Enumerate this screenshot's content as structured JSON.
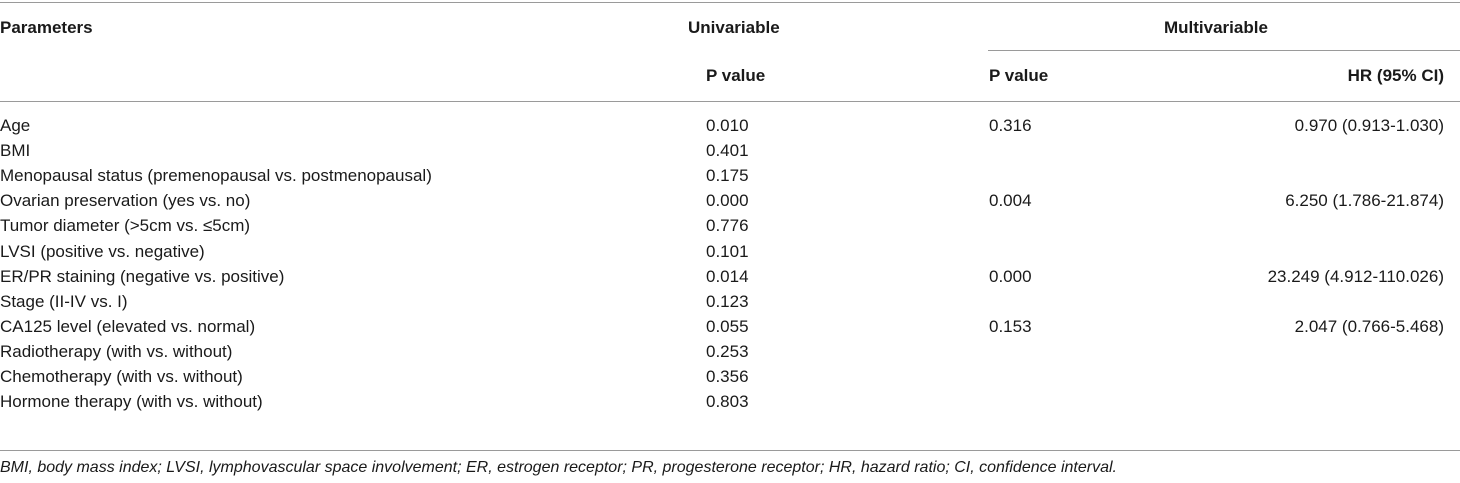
{
  "table": {
    "headers": {
      "parameters": "Parameters",
      "univariable": "Univariable",
      "multivariable": "Multivariable",
      "uni_p": "P value",
      "multi_p": "P value",
      "multi_hr": "HR (95% CI)"
    },
    "rows": [
      {
        "parameter": "Age",
        "uni_p": "0.010",
        "multi_p": "0.316",
        "hr": "0.970 (0.913-1.030)"
      },
      {
        "parameter": "BMI",
        "uni_p": "0.401",
        "multi_p": "",
        "hr": ""
      },
      {
        "parameter": "Menopausal status (premenopausal vs. postmenopausal)",
        "uni_p": "0.175",
        "multi_p": "",
        "hr": ""
      },
      {
        "parameter": "Ovarian preservation (yes vs. no)",
        "uni_p": "0.000",
        "multi_p": "0.004",
        "hr": "6.250 (1.786-21.874)"
      },
      {
        "parameter": "Tumor diameter (>5cm vs. ≤5cm)",
        "uni_p": "0.776",
        "multi_p": "",
        "hr": ""
      },
      {
        "parameter": "LVSI (positive vs. negative)",
        "uni_p": "0.101",
        "multi_p": "",
        "hr": ""
      },
      {
        "parameter": "ER/PR staining (negative vs. positive)",
        "uni_p": "0.014",
        "multi_p": "0.000",
        "hr": "23.249 (4.912-110.026)"
      },
      {
        "parameter": "Stage (II-IV vs. I)",
        "uni_p": "0.123",
        "multi_p": "",
        "hr": ""
      },
      {
        "parameter": "CA125 level (elevated vs. normal)",
        "uni_p": "0.055",
        "multi_p": "0.153",
        "hr": "2.047 (0.766-5.468)"
      },
      {
        "parameter": "Radiotherapy (with vs. without)",
        "uni_p": "0.253",
        "multi_p": "",
        "hr": ""
      },
      {
        "parameter": "Chemotherapy (with vs. without)",
        "uni_p": "0.356",
        "multi_p": "",
        "hr": ""
      },
      {
        "parameter": "Hormone therapy (with vs. without)",
        "uni_p": "0.803",
        "multi_p": "",
        "hr": ""
      }
    ],
    "footnote": "BMI, body mass index; LVSI, lymphovascular space involvement; ER, estrogen receptor; PR, progesterone receptor; HR, hazard ratio; CI, confidence interval."
  }
}
